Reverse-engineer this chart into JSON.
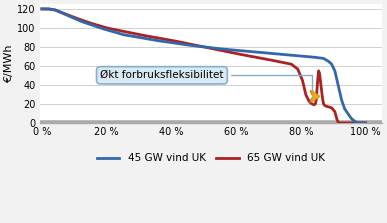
{
  "ylabel": "€/MWh",
  "ylim": [
    0,
    125
  ],
  "xlim": [
    -0.005,
    1.05
  ],
  "xticks": [
    0,
    0.2,
    0.4,
    0.6,
    0.8,
    1.0
  ],
  "xtick_labels": [
    "0 %",
    "20 %",
    "40 %",
    "60 %",
    "80 %",
    "100 %"
  ],
  "yticks": [
    0,
    20,
    40,
    60,
    80,
    100,
    120
  ],
  "color_45gw": "#3366aa",
  "color_65gw": "#aa2222",
  "legend_label_45": "45 GW vind UK",
  "legend_label_65": "65 GW vind UK",
  "annotation_text": "Økt forbruksfleksibilitet",
  "annotation_box_color": "#d8e8f4",
  "annotation_edge_color": "#7eaec8",
  "arrow_color": "#e8a820",
  "bg_color": "#f2f2f2",
  "plot_bg": "#ffffff",
  "grid_color": "#c8c8c8",
  "base_line_color": "#aaaaaa",
  "linewidth": 2.0
}
